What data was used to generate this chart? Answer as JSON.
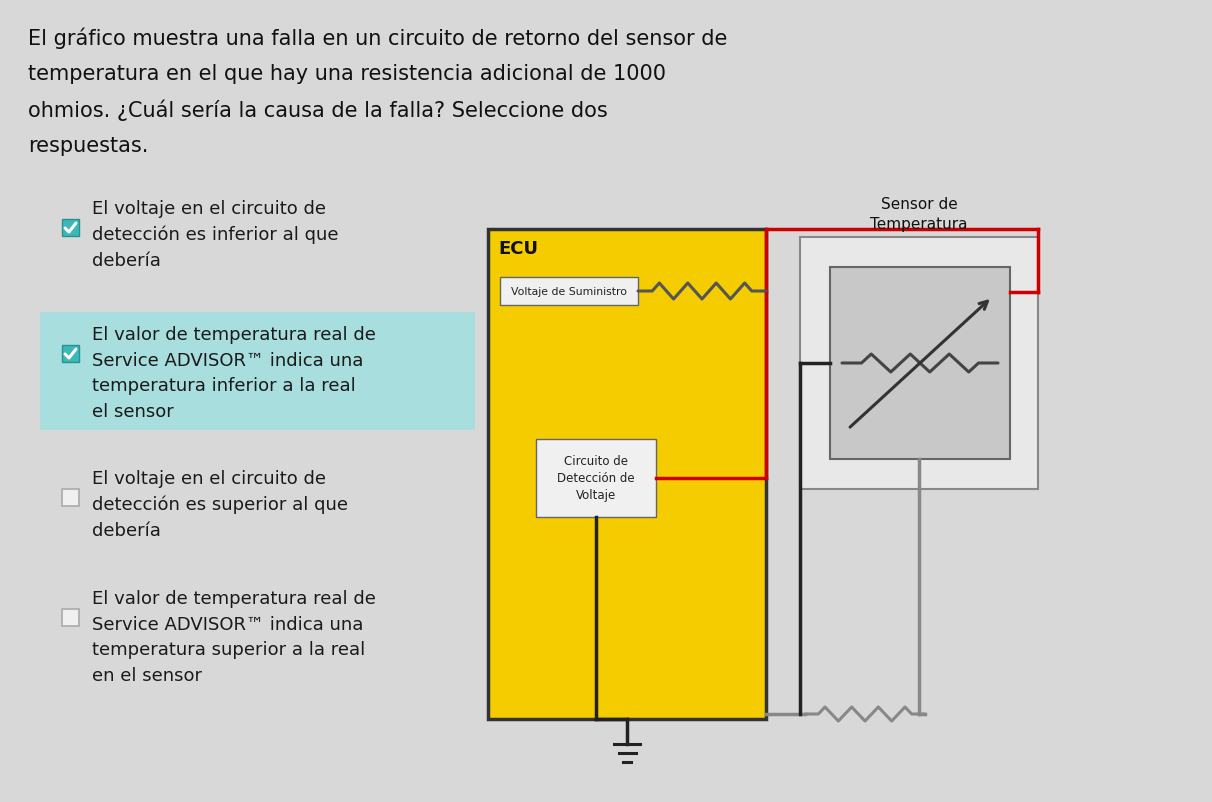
{
  "title_line1": "El gráfico muestra una falla en un circuito de retorno del sensor de",
  "title_line2": "temperatura en el que hay una resistencia adicional de 1000",
  "title_line3": "ohmios. ¿Cuál sería la causa de la falla? Seleccione dos",
  "title_line4": "respuestas.",
  "bg_color": "#d8d8d8",
  "title_color": "#111111",
  "title_fontsize": 15,
  "options": [
    {
      "text": "El voltaje en el circuito de\ndetección es inferior al que\ndebería",
      "checked": true,
      "highlighted": false
    },
    {
      "text": "El valor de temperatura real de\nService ADVISOR™ indica una\ntemperatura inferior a la real\nel sensor",
      "checked": true,
      "highlighted": true
    },
    {
      "text": "El voltaje en el circuito de\ndetección es superior al que\ndebería",
      "checked": false,
      "highlighted": false
    },
    {
      "text": "El valor de temperatura real de\nService ADVISOR™ indica una\ntemperatura superior a la real\nen el sensor",
      "checked": false,
      "highlighted": false
    }
  ],
  "ecu_label": "ECU",
  "supply_label": "Voltaje de Suministro",
  "sensor_label": "Sensor de\nTemperatura",
  "detect_label": "Circuito de\nDetección de\nVoltaje",
  "ecu_bg": "#f5cc00",
  "ecu_border": "#333333",
  "sensor_inner_bg": "#cccccc",
  "sensor_outer_bg": "#e0e0e0",
  "wire_red": "#cc0000",
  "wire_black": "#222222",
  "wire_gray": "#888888",
  "highlight_color": "#a8dede",
  "checkbox_checked_color": "#3bb8b8",
  "checkbox_unchecked_color": "#f0f0f0",
  "option_text_color": "#1a1a1a",
  "option_text_fontsize": 13
}
